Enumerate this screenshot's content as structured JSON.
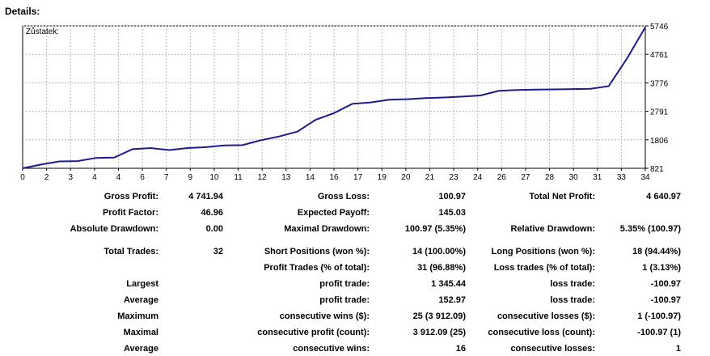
{
  "header": {
    "title": "Details:"
  },
  "chart_data": {
    "type": "line",
    "title": "Zůstatek:",
    "x_ticks": [
      "0",
      "2",
      "3",
      "4",
      "4",
      "6",
      "7",
      "9",
      "10",
      "11",
      "12",
      "13",
      "14",
      "16",
      "17",
      "19",
      "20",
      "21",
      "23",
      "24",
      "26",
      "27",
      "28",
      "30",
      "31",
      "33",
      "34"
    ],
    "y_ticks": [
      "821",
      "1806",
      "2791",
      "3776",
      "4761",
      "5746"
    ],
    "ylim": [
      821,
      5746
    ],
    "x": [
      0,
      1,
      2,
      3,
      4,
      5,
      6,
      7,
      8,
      9,
      10,
      11,
      12,
      13,
      14,
      15,
      16,
      17,
      18,
      19,
      20,
      21,
      22,
      23,
      24,
      25,
      26,
      27,
      28,
      29,
      30,
      31,
      32,
      33,
      34
    ],
    "series": [
      {
        "values": [
          821,
          950,
          1060,
          1070,
          1180,
          1190,
          1480,
          1520,
          1450,
          1520,
          1550,
          1610,
          1620,
          1790,
          1920,
          2090,
          2500,
          2730,
          3050,
          3100,
          3190,
          3210,
          3250,
          3270,
          3300,
          3340,
          3500,
          3530,
          3540,
          3550,
          3560,
          3570,
          3660,
          4620,
          5700
        ]
      }
    ],
    "grid": true,
    "line_color": "#1c1c8c"
  },
  "stats": {
    "gross_profit": {
      "label": "Gross Profit:",
      "value": "4 741.94"
    },
    "gross_loss": {
      "label": "Gross Loss:",
      "value": "100.97"
    },
    "total_net_profit": {
      "label": "Total Net Profit:",
      "value": "4 640.97"
    },
    "profit_factor": {
      "label": "Profit Factor:",
      "value": "46.96"
    },
    "expected_payoff": {
      "label": "Expected Payoff:",
      "value": "145.03"
    },
    "absolute_drawdown": {
      "label": "Absolute Drawdown:",
      "value": "0.00"
    },
    "maximal_drawdown": {
      "label": "Maximal Drawdown:",
      "value": "100.97 (5.35%)"
    },
    "relative_drawdown": {
      "label": "Relative Drawdown:",
      "value": "5.35% (100.97)"
    },
    "total_trades": {
      "label": "Total Trades:",
      "value": "32"
    },
    "short_positions": {
      "label": "Short Positions (won %):",
      "value": "14 (100.00%)"
    },
    "long_positions": {
      "label": "Long Positions (won %):",
      "value": "18 (94.44%)"
    },
    "profit_trades": {
      "label": "Profit Trades (% of total):",
      "value": "31 (96.88%)"
    },
    "loss_trades": {
      "label": "Loss trades (% of total):",
      "value": "1 (3.13%)"
    },
    "largest": {
      "label": "Largest",
      "profit_label": "profit trade:",
      "profit_value": "1 345.44",
      "loss_label": "loss trade:",
      "loss_value": "-100.97"
    },
    "average": {
      "label": "Average",
      "profit_label": "profit trade:",
      "profit_value": "152.97",
      "loss_label": "loss trade:",
      "loss_value": "-100.97"
    },
    "maximum": {
      "label": "Maximum",
      "profit_label": "consecutive wins ($):",
      "profit_value": "25 (3 912.09)",
      "loss_label": "consecutive losses ($):",
      "loss_value": "1 (-100.97)"
    },
    "maximal": {
      "label": "Maximal",
      "profit_label": "consecutive profit (count):",
      "profit_value": "3 912.09 (25)",
      "loss_label": "consecutive loss (count):",
      "loss_value": "-100.97 (1)"
    },
    "average_consec": {
      "label": "Average",
      "profit_label": "consecutive wins:",
      "profit_value": "16",
      "loss_label": "consecutive losses:",
      "loss_value": "1"
    }
  }
}
